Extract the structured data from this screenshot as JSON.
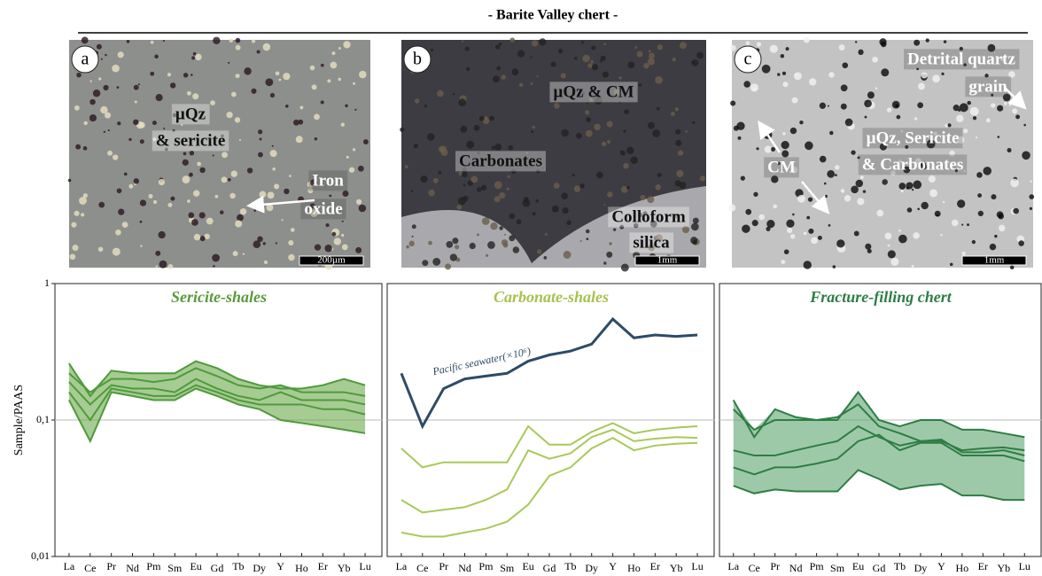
{
  "header": {
    "title": "- Barite Valley chert -"
  },
  "photos": [
    {
      "letter": "a",
      "labels": [
        [
          "µQz",
          "& sericite"
        ],
        [
          "Iron",
          "oxide"
        ]
      ],
      "scale": "200µm"
    },
    {
      "letter": "b",
      "labels": [
        [
          "µQz & CM"
        ],
        [
          "Carbonates"
        ],
        [
          "Colloform",
          "silica"
        ]
      ],
      "scale": "1mm"
    },
    {
      "letter": "c",
      "labels": [
        [
          "Detrital quartz",
          "grain"
        ],
        [
          "µQz, Sericite",
          "& Carbonates"
        ],
        [
          "CM"
        ]
      ],
      "scale": "1mm"
    }
  ],
  "chart_data": [
    {
      "type": "line",
      "title": "Sericite-shales",
      "title_color": "#5a9a3c",
      "y_label": "Sample/PAAS",
      "log_y": true,
      "ylim": [
        0.01,
        1
      ],
      "yticks": [
        {
          "value": 0.01,
          "label": "0,01"
        },
        {
          "value": 0.1,
          "label": "0,1"
        },
        1
      ],
      "tick_labels": true,
      "shaded": true,
      "fill_color": "#6aaa4c",
      "categories": [
        "La",
        "Ce",
        "Pr",
        "Nd",
        "Pm",
        "Sm",
        "Eu",
        "Gd",
        "Tb",
        "Dy",
        "Y",
        "Ho",
        "Er",
        "Yb",
        "Lu"
      ],
      "series": [
        {
          "color": "#4f9a3a",
          "values": [
            0.26,
            0.15,
            0.23,
            0.22,
            0.22,
            0.22,
            0.27,
            0.24,
            0.2,
            0.18,
            0.17,
            0.17,
            0.18,
            0.2,
            0.18
          ]
        },
        {
          "color": "#4f9a3a",
          "values": [
            0.22,
            0.16,
            0.2,
            0.2,
            0.19,
            0.2,
            0.24,
            0.21,
            0.18,
            0.17,
            0.18,
            0.16,
            0.16,
            0.16,
            0.15
          ]
        },
        {
          "color": "#4f9a3a",
          "values": [
            0.19,
            0.13,
            0.18,
            0.17,
            0.17,
            0.16,
            0.2,
            0.17,
            0.15,
            0.14,
            0.16,
            0.14,
            0.14,
            0.14,
            0.13
          ]
        },
        {
          "color": "#4f9a3a",
          "values": [
            0.16,
            0.1,
            0.17,
            0.16,
            0.15,
            0.15,
            0.18,
            0.16,
            0.14,
            0.13,
            0.13,
            0.13,
            0.12,
            0.12,
            0.11
          ]
        },
        {
          "color": "#4f9a3a",
          "values": [
            0.14,
            0.07,
            0.16,
            0.15,
            0.14,
            0.14,
            0.17,
            0.15,
            0.13,
            0.12,
            0.1,
            0.095,
            0.09,
            0.085,
            0.08
          ]
        }
      ]
    },
    {
      "type": "line",
      "title": "Carbonate-shales",
      "title_color": "#a6c24e",
      "log_y": true,
      "ylim": [
        0.01,
        1
      ],
      "yticks": [
        0.1
      ],
      "tick_labels": false,
      "shaded": false,
      "categories": [
        "La",
        "Ce",
        "Pr",
        "Nd",
        "Pm",
        "Sm",
        "Eu",
        "Gd",
        "Tb",
        "Dy",
        "Y",
        "Ho",
        "Er",
        "Yb",
        "Lu"
      ],
      "series": [
        {
          "name": "Pacific seawater(×10⁶)",
          "color": "#2d4b66",
          "values": [
            0.22,
            0.09,
            0.17,
            0.2,
            0.21,
            0.22,
            0.27,
            0.3,
            0.32,
            0.36,
            0.55,
            0.4,
            0.42,
            0.41,
            0.42
          ]
        },
        {
          "color": "#a8c95a",
          "values": [
            0.062,
            0.045,
            0.049,
            0.049,
            0.049,
            0.049,
            0.09,
            0.066,
            0.066,
            0.082,
            0.095,
            0.08,
            0.085,
            0.088,
            0.09
          ]
        },
        {
          "color": "#a8c95a",
          "values": [
            0.026,
            0.021,
            0.022,
            0.023,
            0.026,
            0.031,
            0.06,
            0.052,
            0.057,
            0.075,
            0.085,
            0.07,
            0.073,
            0.075,
            0.074
          ]
        },
        {
          "color": "#a8c95a",
          "values": [
            0.015,
            0.014,
            0.014,
            0.015,
            0.016,
            0.018,
            0.024,
            0.039,
            0.045,
            0.062,
            0.074,
            0.06,
            0.065,
            0.067,
            0.068
          ]
        }
      ]
    },
    {
      "type": "line",
      "title": "Fracture-filling chert",
      "title_color": "#2e7d45",
      "log_y": true,
      "ylim": [
        0.01,
        1
      ],
      "yticks": [
        0.1
      ],
      "tick_labels": false,
      "shaded": true,
      "fill_color": "#5ea56e",
      "categories": [
        "La",
        "Ce",
        "Pr",
        "Nd",
        "Pm",
        "Sm",
        "Eu",
        "Gd",
        "Tb",
        "Dy",
        "Y",
        "Ho",
        "Er",
        "Yb",
        "Lu"
      ],
      "series": [
        {
          "color": "#2e7d45",
          "values": [
            0.14,
            0.075,
            0.12,
            0.105,
            0.1,
            0.1,
            0.16,
            0.1,
            0.09,
            0.1,
            0.1,
            0.085,
            0.085,
            0.08,
            0.075
          ]
        },
        {
          "color": "#2e7d45",
          "values": [
            0.12,
            0.085,
            0.1,
            0.1,
            0.1,
            0.105,
            0.13,
            0.09,
            0.08,
            0.07,
            0.07,
            0.06,
            0.062,
            0.063,
            0.06
          ]
        },
        {
          "color": "#2e7d45",
          "values": [
            0.06,
            0.055,
            0.055,
            0.06,
            0.065,
            0.07,
            0.09,
            0.075,
            0.065,
            0.07,
            0.072,
            0.058,
            0.058,
            0.06,
            0.055
          ]
        },
        {
          "color": "#2e7d45",
          "values": [
            0.045,
            0.04,
            0.045,
            0.045,
            0.048,
            0.052,
            0.07,
            0.078,
            0.06,
            0.068,
            0.068,
            0.055,
            0.055,
            0.055,
            0.05
          ]
        },
        {
          "color": "#2e7d45",
          "values": [
            0.033,
            0.029,
            0.031,
            0.03,
            0.03,
            0.03,
            0.043,
            0.037,
            0.031,
            0.033,
            0.034,
            0.028,
            0.028,
            0.026,
            0.026
          ]
        }
      ]
    }
  ]
}
